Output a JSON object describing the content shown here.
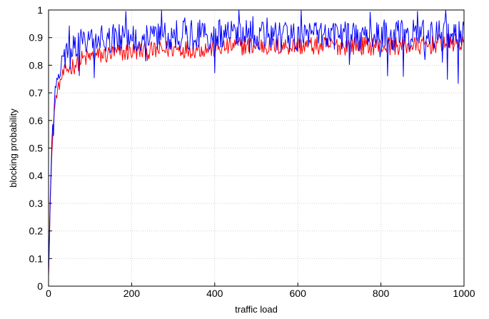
{
  "chart_data": {
    "type": "line",
    "title": "",
    "xlabel": "traffic load",
    "ylabel": "blocking probability",
    "xlim": [
      0,
      1000
    ],
    "ylim": [
      0,
      1
    ],
    "grid": true,
    "legend": "none",
    "x_ticks": [
      "0",
      "200",
      "400",
      "600",
      "800",
      "1000"
    ],
    "y_ticks": [
      "0",
      "0.1",
      "0.2",
      "0.3",
      "0.4",
      "0.5",
      "0.6",
      "0.7",
      "0.8",
      "0.9",
      "1"
    ],
    "x_tick_values": [
      0,
      200,
      400,
      600,
      800,
      1000
    ],
    "y_tick_values": [
      0,
      0.1,
      0.2,
      0.3,
      0.4,
      0.5,
      0.6,
      0.7,
      0.8,
      0.9,
      1
    ],
    "series": [
      {
        "color": "#ff0000",
        "x": [
          0,
          5,
          10,
          15,
          20,
          30,
          40,
          60,
          80,
          100,
          150,
          200,
          250,
          300,
          350,
          400,
          450,
          500,
          550,
          600,
          650,
          700,
          750,
          800,
          850,
          900,
          950,
          1000
        ],
        "values": [
          0.05,
          0.35,
          0.55,
          0.65,
          0.7,
          0.75,
          0.78,
          0.8,
          0.82,
          0.83,
          0.84,
          0.85,
          0.85,
          0.86,
          0.86,
          0.86,
          0.87,
          0.87,
          0.87,
          0.87,
          0.87,
          0.87,
          0.87,
          0.87,
          0.87,
          0.87,
          0.88,
          0.88
        ]
      },
      {
        "color": "#0000ff",
        "x": [
          0,
          5,
          10,
          15,
          20,
          30,
          40,
          60,
          80,
          100,
          150,
          200,
          250,
          300,
          350,
          400,
          450,
          500,
          550,
          600,
          650,
          700,
          750,
          800,
          850,
          900,
          950,
          1000
        ],
        "values": [
          0.05,
          0.38,
          0.58,
          0.7,
          0.75,
          0.8,
          0.83,
          0.86,
          0.88,
          0.89,
          0.9,
          0.9,
          0.91,
          0.91,
          0.91,
          0.91,
          0.91,
          0.91,
          0.9,
          0.9,
          0.91,
          0.91,
          0.9,
          0.91,
          0.91,
          0.91,
          0.9,
          0.91
        ]
      }
    ]
  }
}
